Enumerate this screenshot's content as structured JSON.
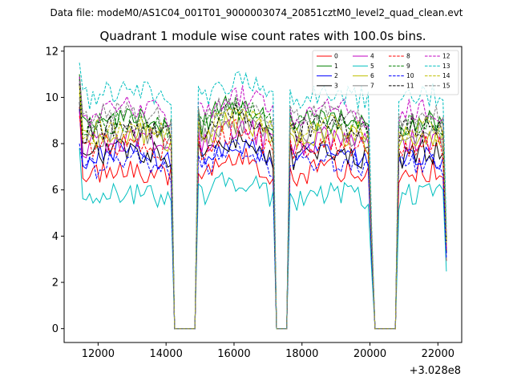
{
  "chart_data": {
    "type": "line",
    "suptitle": "Data file: modeM0/AS1C04_001T01_9000003074_20851cztM0_level2_quad_clean.evt",
    "title": "Quadrant 1 module wise count rates with 100.0s bins.",
    "xlabel": "",
    "ylabel": "",
    "x_offset_text": "+3.028e8",
    "xlim": [
      11000,
      22700
    ],
    "ylim": [
      -0.6,
      12.2
    ],
    "x_ticks": [
      12000,
      14000,
      16000,
      18000,
      20000,
      22000
    ],
    "x_tick_labels": [
      "12000",
      "14000",
      "16000",
      "18000",
      "20000",
      "22000"
    ],
    "y_ticks": [
      0,
      2,
      4,
      6,
      8,
      10,
      12
    ],
    "y_tick_labels": [
      "0",
      "2",
      "4",
      "6",
      "8",
      "10",
      "12"
    ],
    "legend_position": "upper right",
    "x_bins": [
      11450,
      11550,
      11650,
      11750,
      11850,
      11950,
      12050,
      12150,
      12250,
      12350,
      12450,
      12550,
      12650,
      12750,
      12850,
      12950,
      13050,
      13150,
      13250,
      13350,
      13450,
      13550,
      13650,
      13750,
      13850,
      13950,
      14050,
      14150,
      14250,
      14350,
      14450,
      14550,
      14650,
      14750,
      14850,
      14950,
      15050,
      15150,
      15250,
      15350,
      15450,
      15550,
      15650,
      15750,
      15850,
      15950,
      16050,
      16150,
      16250,
      16350,
      16450,
      16550,
      16650,
      16750,
      16850,
      16950,
      17050,
      17150,
      17250,
      17350,
      17450,
      17550,
      17650,
      17750,
      17850,
      17950,
      18050,
      18150,
      18250,
      18350,
      18450,
      18550,
      18650,
      18750,
      18850,
      18950,
      19050,
      19150,
      19250,
      19350,
      19450,
      19550,
      19650,
      19750,
      19850,
      19950,
      20050,
      20150,
      20250,
      20350,
      20450,
      20550,
      20650,
      20750,
      20850,
      20950,
      21050,
      21150,
      21250,
      21350,
      21450,
      21550,
      21650,
      21750,
      21850,
      21950,
      22050,
      22150,
      22250
    ],
    "on_intervals": [
      [
        11450,
        14200
      ],
      [
        14950,
        17200
      ],
      [
        17650,
        20050
      ],
      [
        20800,
        22250
      ]
    ],
    "series": [
      {
        "name": "0",
        "color": "#ff0000",
        "dash": "solid",
        "level": 6.5,
        "first": 9.6
      },
      {
        "name": "1",
        "color": "#008000",
        "dash": "solid",
        "level": 8.7,
        "first": 11.0
      },
      {
        "name": "2",
        "color": "#0000ff",
        "dash": "solid",
        "level": 7.2,
        "first": 9.5
      },
      {
        "name": "3",
        "color": "#000000",
        "dash": "solid",
        "level": 7.3,
        "first": 9.8
      },
      {
        "name": "4",
        "color": "#c000c0",
        "dash": "solid",
        "level": 7.8,
        "first": 9.4
      },
      {
        "name": "5",
        "color": "#00bfbf",
        "dash": "solid",
        "level": 5.5,
        "first": 7.8
      },
      {
        "name": "6",
        "color": "#bfbf00",
        "dash": "solid",
        "level": 8.0,
        "first": 10.2
      },
      {
        "name": "7",
        "color": "#808080",
        "dash": "solid",
        "level": 8.1,
        "first": 10.0
      },
      {
        "name": "8",
        "color": "#ff0000",
        "dash": "dashed",
        "level": 7.6,
        "first": 9.2
      },
      {
        "name": "9",
        "color": "#008000",
        "dash": "dashed",
        "level": 8.6,
        "first": 10.8
      },
      {
        "name": "10",
        "color": "#0000ff",
        "dash": "dashed",
        "level": 6.8,
        "first": 8.0
      },
      {
        "name": "11",
        "color": "#000000",
        "dash": "dashed",
        "level": 8.4,
        "first": 10.6
      },
      {
        "name": "12",
        "color": "#c000c0",
        "dash": "dashed",
        "level": 9.1,
        "first": 10.9
      },
      {
        "name": "13",
        "color": "#00bfbf",
        "dash": "dashed",
        "level": 9.8,
        "first": 11.5
      },
      {
        "name": "14",
        "color": "#bfbf00",
        "dash": "dashed",
        "level": 8.3,
        "first": 10.5
      },
      {
        "name": "15",
        "color": "#808080",
        "dash": "dashed",
        "level": 8.9,
        "first": 10.7
      }
    ]
  }
}
